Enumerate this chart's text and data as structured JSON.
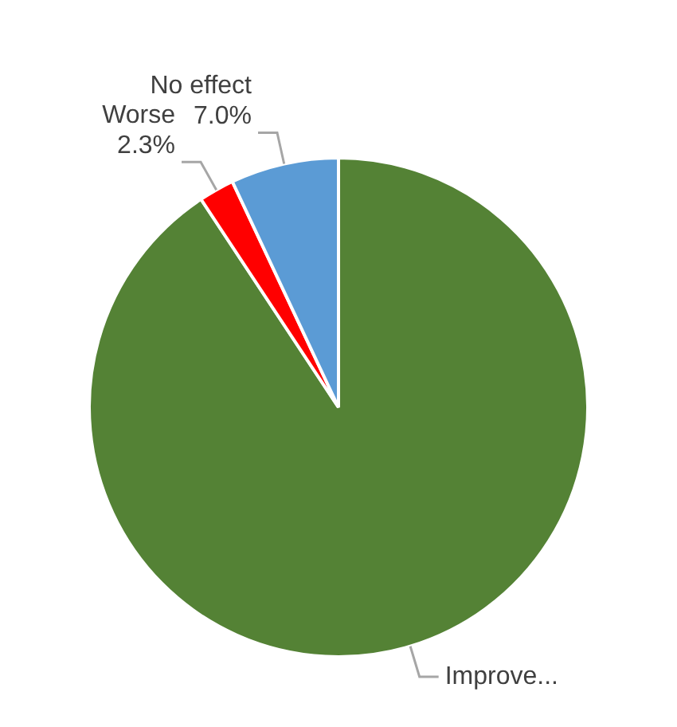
{
  "chart_data": {
    "type": "pie",
    "categories": [
      "Improve...",
      "Worse",
      "No effect"
    ],
    "values": [
      90.7,
      2.3,
      7.0
    ],
    "colors": [
      "#548235",
      "#ff0000",
      "#5b9bd5"
    ],
    "value_labels": [
      null,
      "2.3%",
      "7.0%"
    ],
    "legend": false
  }
}
